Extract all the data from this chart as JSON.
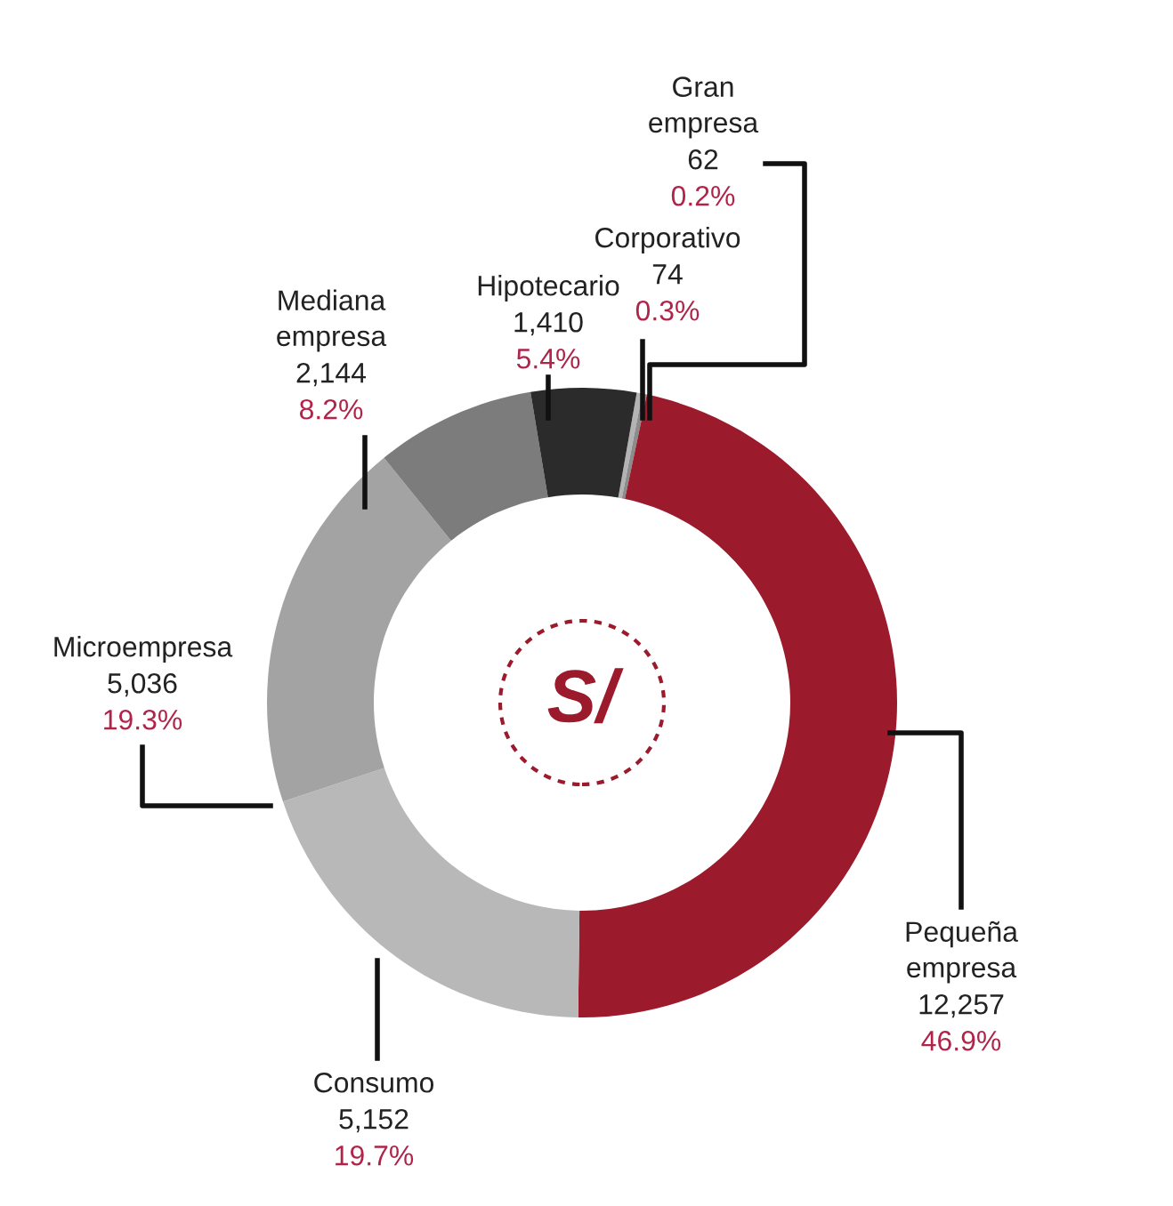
{
  "chart_data": {
    "type": "donut",
    "categories": [
      "Corporativo",
      "Gran\nempresa",
      "Pequeña\nempresa",
      "Consumo",
      "Microempresa",
      "Mediana\nempresa",
      "Hipotecario"
    ],
    "values": [
      74,
      62,
      12257,
      5152,
      5036,
      2144,
      1410
    ],
    "value_labels": [
      "74\n0.3%",
      "62\n0.2%",
      "12,257\n46.9%",
      "5,152\n19.7%",
      "5,036\n19.3%",
      "2,144\n8.2%",
      "1,410\n5.4%"
    ],
    "colors": [
      "#b3b3b3",
      "#8c8c8c",
      "#9b1a2c",
      "#b8b8b8",
      "#a3a3a3",
      "#7c7c7c",
      "#2b2b2b"
    ],
    "annotations": [
      "S/"
    ],
    "legend": false
  }
}
